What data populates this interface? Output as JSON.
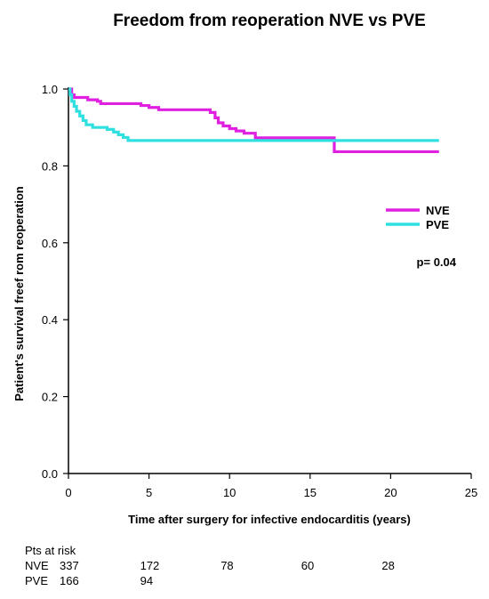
{
  "chart_data": {
    "type": "line",
    "subtype": "kaplan-meier step curve",
    "title": "Freedom from reoperation NVE vs PVE",
    "xlabel": "Time after surgery for infective endocarditis (years)",
    "ylabel": "Patient's survival freef rom reoperation",
    "xlim": [
      0,
      25
    ],
    "ylim": [
      0,
      1.0
    ],
    "xticks": [
      0,
      5,
      10,
      15,
      20,
      25
    ],
    "yticks": [
      0.0,
      0.2,
      0.4,
      0.6,
      0.8,
      1.0
    ],
    "grid": false,
    "legend_position": "right",
    "annotation": "p= 0.04",
    "series": [
      {
        "name": "NVE",
        "color": "#e020e0",
        "points": [
          [
            0,
            1.0
          ],
          [
            0.2,
            0.985
          ],
          [
            0.35,
            0.978
          ],
          [
            1.2,
            0.972
          ],
          [
            1.8,
            0.968
          ],
          [
            2.0,
            0.962
          ],
          [
            4.5,
            0.957
          ],
          [
            5.0,
            0.952
          ],
          [
            5.6,
            0.946
          ],
          [
            8.8,
            0.939
          ],
          [
            9.1,
            0.925
          ],
          [
            9.3,
            0.912
          ],
          [
            9.6,
            0.904
          ],
          [
            10.0,
            0.897
          ],
          [
            10.4,
            0.891
          ],
          [
            10.9,
            0.885
          ],
          [
            11.6,
            0.873
          ],
          [
            16.5,
            0.873
          ],
          [
            16.5,
            0.837
          ],
          [
            23.0,
            0.837
          ]
        ]
      },
      {
        "name": "PVE",
        "color": "#30e0e0",
        "points": [
          [
            0,
            1.0
          ],
          [
            0.1,
            0.985
          ],
          [
            0.2,
            0.968
          ],
          [
            0.35,
            0.955
          ],
          [
            0.5,
            0.942
          ],
          [
            0.7,
            0.93
          ],
          [
            0.9,
            0.918
          ],
          [
            1.1,
            0.907
          ],
          [
            1.5,
            0.9
          ],
          [
            2.4,
            0.895
          ],
          [
            2.8,
            0.888
          ],
          [
            3.1,
            0.881
          ],
          [
            3.4,
            0.874
          ],
          [
            3.7,
            0.866
          ],
          [
            23.0,
            0.866
          ]
        ]
      }
    ]
  },
  "risk_table": {
    "header": "Pts at risk",
    "x_positions": [
      0,
      5,
      10,
      15,
      20
    ],
    "rows": [
      {
        "label": "NVE",
        "values": [
          "337",
          "172",
          "78",
          "60",
          "28"
        ]
      },
      {
        "label": "PVE",
        "values": [
          "166",
          "94",
          "",
          "",
          ""
        ]
      }
    ]
  }
}
